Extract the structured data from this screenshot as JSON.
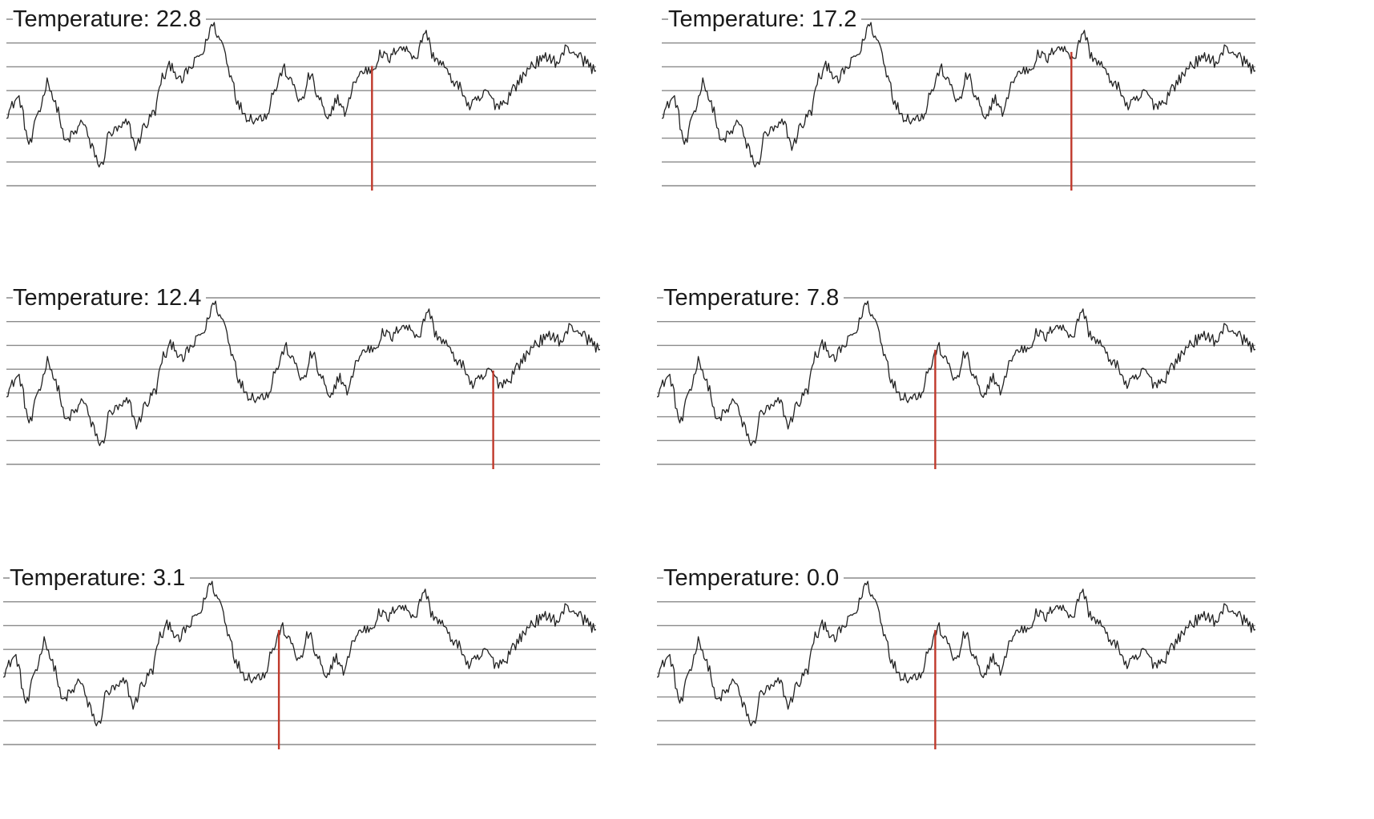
{
  "figure": {
    "label_prefix": "Temperature: ",
    "colors": {
      "curve": "#222222",
      "grid": "#8a8a8a",
      "marker": "#c0392b"
    }
  },
  "chart_data": [
    {
      "type": "line",
      "panel": "top-left",
      "temperature": "22.8",
      "marker_x": 0.62,
      "ylim": [
        0,
        8
      ],
      "grid": true
    },
    {
      "type": "line",
      "panel": "top-right",
      "temperature": "17.2",
      "marker_x": 0.69,
      "ylim": [
        0,
        8
      ],
      "grid": true
    },
    {
      "type": "line",
      "panel": "middle-left",
      "temperature": "12.4",
      "marker_x": 0.82,
      "ylim": [
        0,
        8
      ],
      "grid": true
    },
    {
      "type": "line",
      "panel": "middle-right",
      "temperature": "7.8",
      "marker_x": 0.465,
      "ylim": [
        0,
        8
      ],
      "grid": true
    },
    {
      "type": "line",
      "panel": "bottom-left",
      "temperature": "3.1",
      "marker_x": 0.465,
      "ylim": [
        0,
        8
      ],
      "grid": true
    },
    {
      "type": "line",
      "panel": "bottom-right",
      "temperature": "0.0",
      "marker_x": 0.465,
      "ylim": [
        0,
        8
      ],
      "grid": true
    }
  ],
  "curve": {
    "x": [
      0,
      0.02,
      0.04,
      0.055,
      0.07,
      0.085,
      0.1,
      0.115,
      0.13,
      0.145,
      0.16,
      0.175,
      0.19,
      0.205,
      0.22,
      0.235,
      0.25,
      0.265,
      0.28,
      0.295,
      0.31,
      0.33,
      0.35,
      0.365,
      0.38,
      0.395,
      0.41,
      0.425,
      0.44,
      0.455,
      0.47,
      0.485,
      0.5,
      0.515,
      0.53,
      0.545,
      0.56,
      0.575,
      0.59,
      0.605,
      0.62,
      0.635,
      0.65,
      0.665,
      0.68,
      0.695,
      0.71,
      0.725,
      0.74,
      0.755,
      0.77,
      0.785,
      0.8,
      0.815,
      0.83,
      0.845,
      0.86,
      0.875,
      0.89,
      0.905,
      0.92,
      0.935,
      0.95,
      0.965,
      0.98,
      1.0
    ],
    "y": [
      3.5,
      4.2,
      2.0,
      3.6,
      5.0,
      3.8,
      2.1,
      2.5,
      3.1,
      1.8,
      0.9,
      2.5,
      2.7,
      3.0,
      1.9,
      2.9,
      3.5,
      5.2,
      5.8,
      5.0,
      5.6,
      6.3,
      7.7,
      6.9,
      5.4,
      3.8,
      3.3,
      3.2,
      3.4,
      4.6,
      5.6,
      4.9,
      4.0,
      5.3,
      4.2,
      3.1,
      4.2,
      3.5,
      5.0,
      5.5,
      5.6,
      6.3,
      6.1,
      6.7,
      6.5,
      6.2,
      7.4,
      6.2,
      5.8,
      5.1,
      4.7,
      3.8,
      4.1,
      4.5,
      3.9,
      4.0,
      4.7,
      5.2,
      5.8,
      6.0,
      6.2,
      5.9,
      6.6,
      6.4,
      6.0,
      5.5
    ]
  }
}
